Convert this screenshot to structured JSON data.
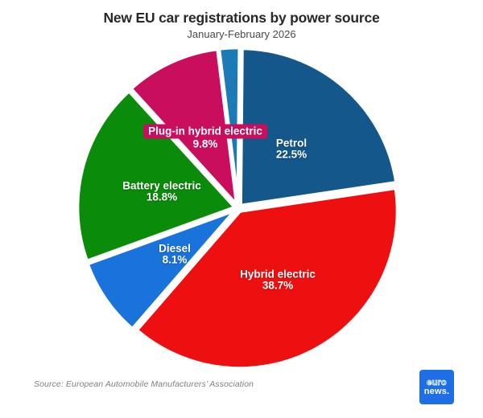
{
  "header": {
    "title": "New EU car registrations by power source",
    "subtitle": "January-February 2026"
  },
  "chart_data": {
    "type": "pie",
    "title": "New EU car registrations by power source",
    "subtitle": "January-February 2026",
    "unit": "%",
    "direction": "clockwise",
    "start_angle_deg": -7,
    "slice_gap_color": "#ffffff",
    "slices": [
      {
        "label": "",
        "value": 2.1,
        "pct_label": "",
        "color": "#1c7ab7"
      },
      {
        "label": "Petrol",
        "value": 22.5,
        "pct_label": "22.5%",
        "color": "#14578b"
      },
      {
        "label": "Hybrid electric",
        "value": 38.7,
        "pct_label": "38.7%",
        "color": "#ee1010"
      },
      {
        "label": "Diesel",
        "value": 8.1,
        "pct_label": "8.1%",
        "color": "#1a73da"
      },
      {
        "label": "Battery electric",
        "value": 18.8,
        "pct_label": "18.8%",
        "color": "#0a8b0a"
      },
      {
        "label": "Plug-in hybrid electric",
        "value": 9.8,
        "pct_label": "9.8%",
        "color": "#c90e5e"
      }
    ]
  },
  "footer": {
    "source": "Source: European Automobile Manufacturers’ Association"
  },
  "logo": {
    "line1": "euro",
    "line2": "news.",
    "color": "#1e6ee6"
  }
}
